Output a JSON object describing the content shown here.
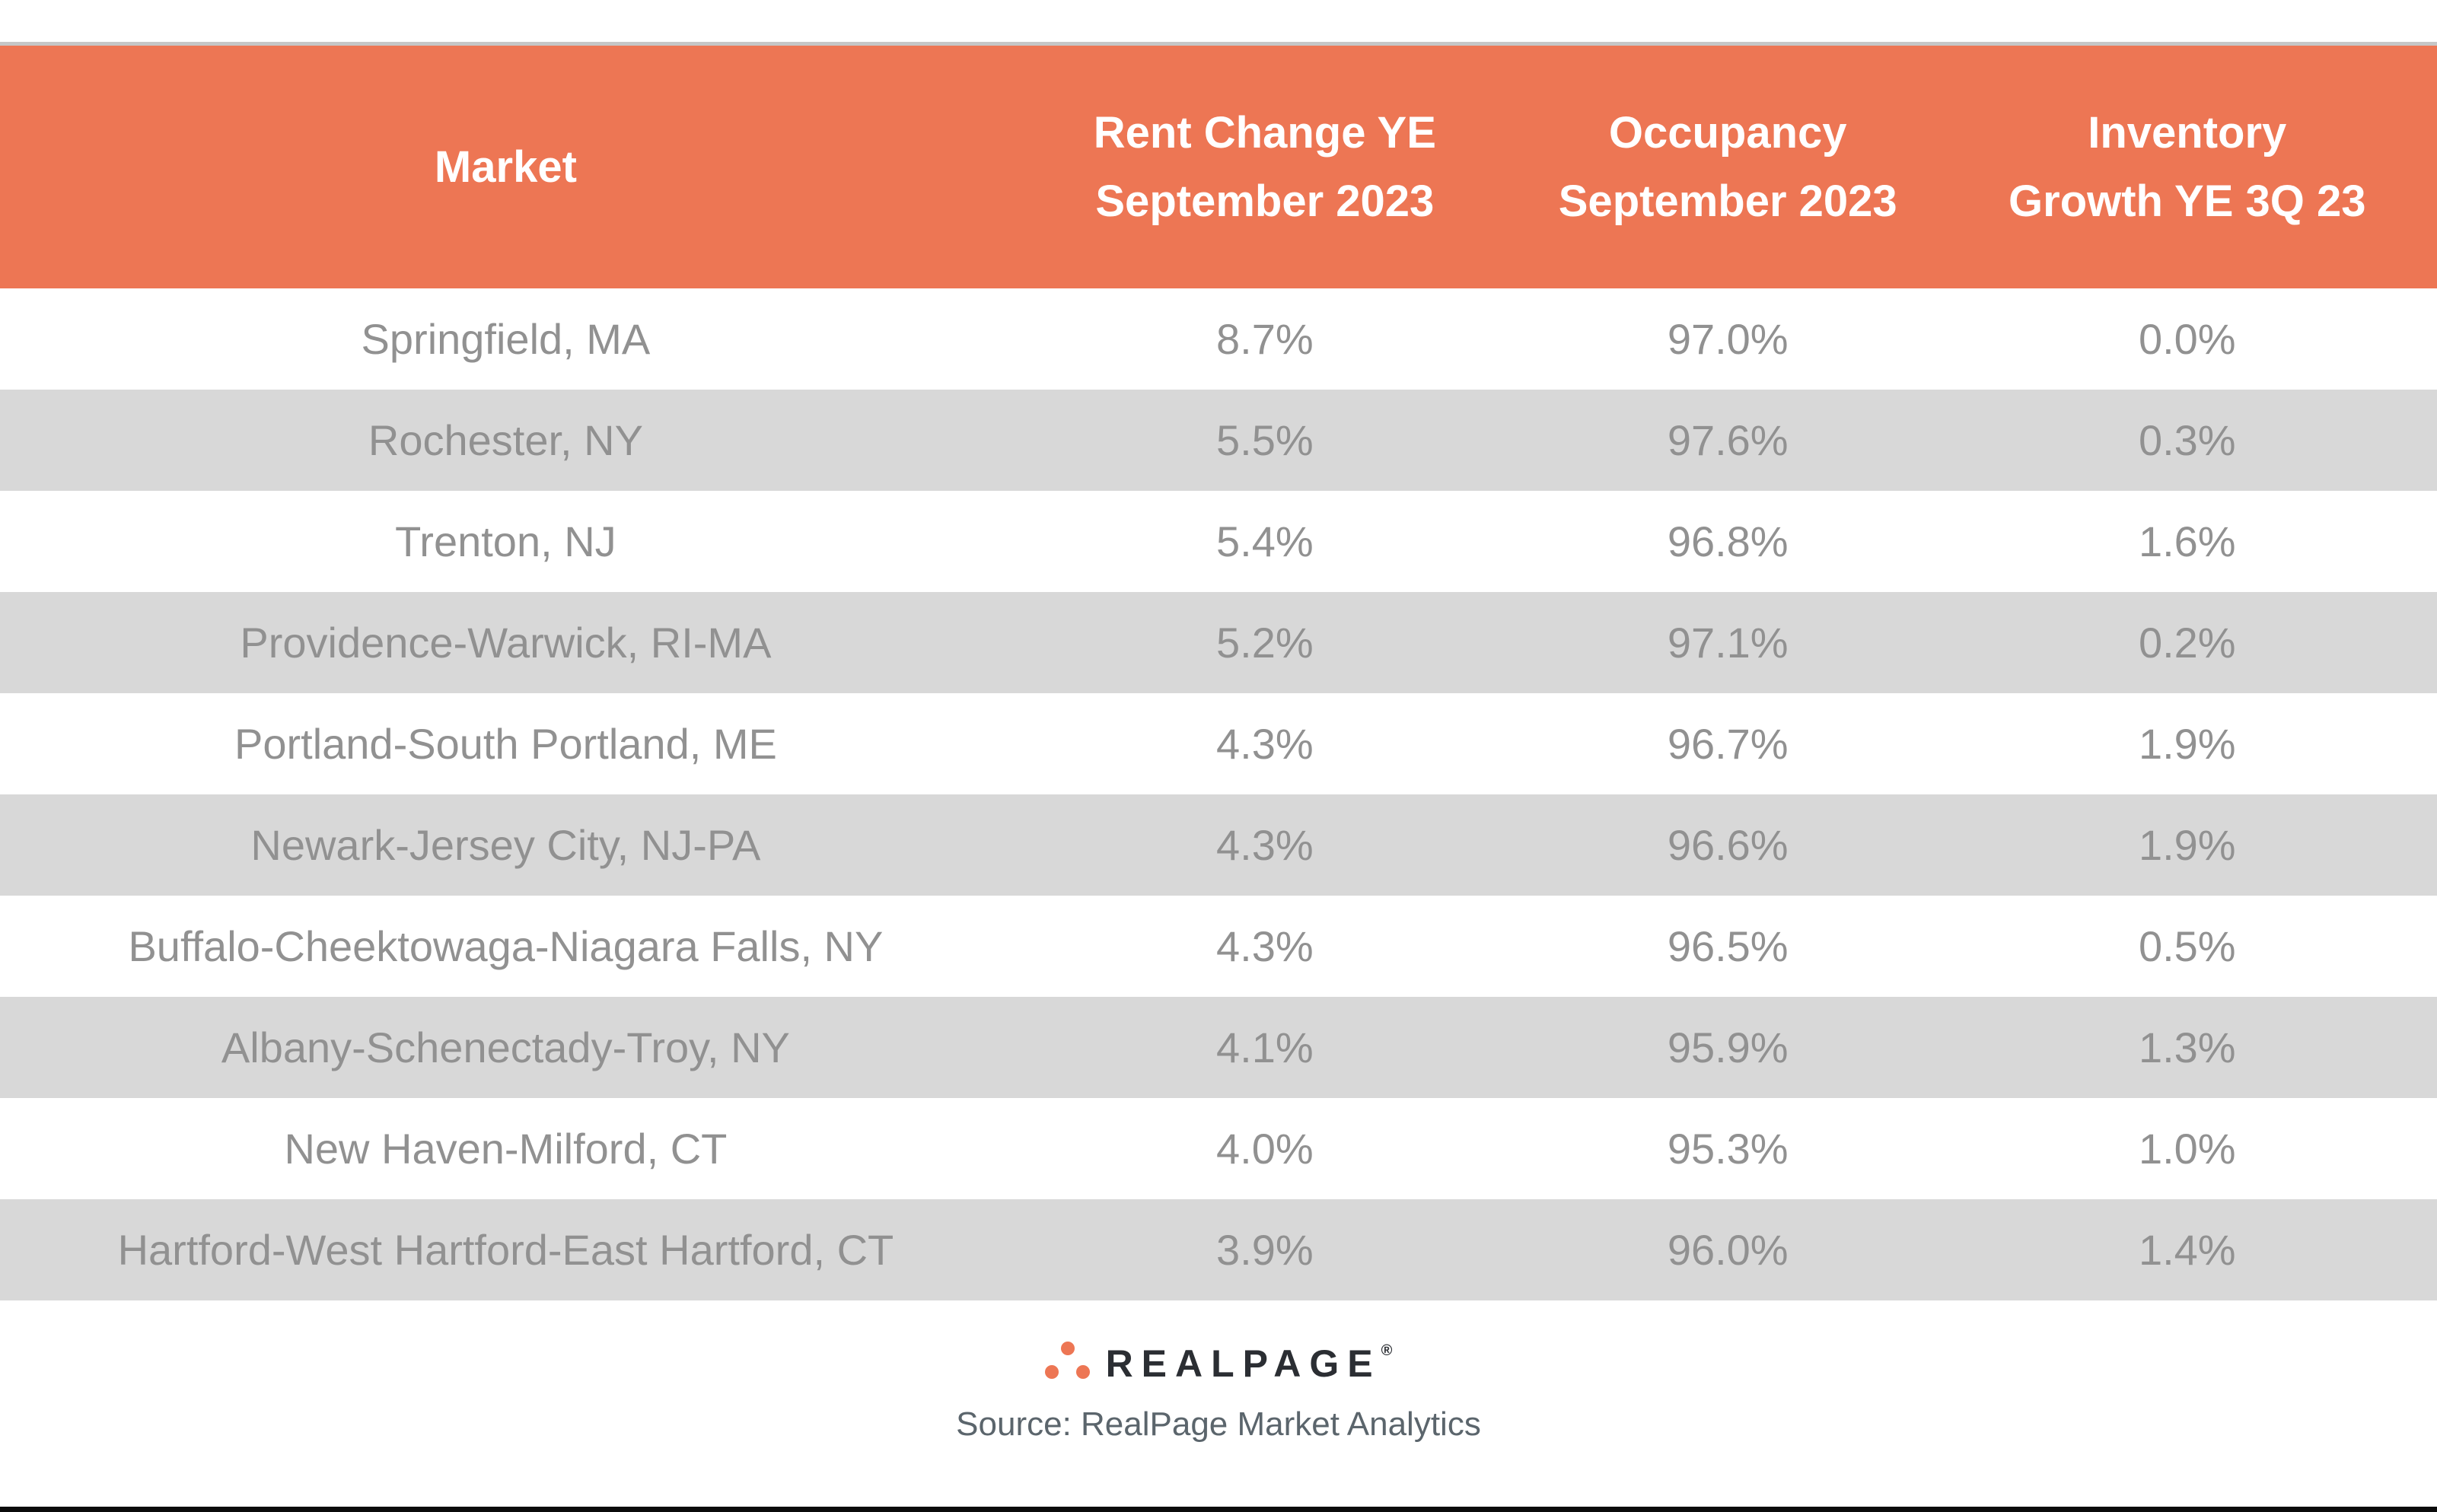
{
  "table": {
    "header": {
      "market": "Market",
      "col2_line1": "Rent Change YE",
      "col2_line2": "September 2023",
      "col3_line1": "Occupancy",
      "col3_line2": "September 2023",
      "col4_line1": "Inventory",
      "col4_line2": "Growth YE 3Q 23"
    },
    "rows": [
      {
        "market": "Springfield, MA",
        "rent_change": "8.7%",
        "occupancy": "97.0%",
        "inventory_growth": "0.0%"
      },
      {
        "market": "Rochester, NY",
        "rent_change": "5.5%",
        "occupancy": "97.6%",
        "inventory_growth": "0.3%"
      },
      {
        "market": "Trenton, NJ",
        "rent_change": "5.4%",
        "occupancy": "96.8%",
        "inventory_growth": "1.6%"
      },
      {
        "market": "Providence-Warwick, RI-MA",
        "rent_change": "5.2%",
        "occupancy": "97.1%",
        "inventory_growth": "0.2%"
      },
      {
        "market": "Portland-South Portland, ME",
        "rent_change": "4.3%",
        "occupancy": "96.7%",
        "inventory_growth": "1.9%"
      },
      {
        "market": "Newark-Jersey City, NJ-PA",
        "rent_change": "4.3%",
        "occupancy": "96.6%",
        "inventory_growth": "1.9%"
      },
      {
        "market": "Buffalo-Cheektowaga-Niagara Falls, NY",
        "rent_change": "4.3%",
        "occupancy": "96.5%",
        "inventory_growth": "0.5%"
      },
      {
        "market": "Albany-Schenectady-Troy, NY",
        "rent_change": "4.1%",
        "occupancy": "95.9%",
        "inventory_growth": "1.3%"
      },
      {
        "market": "New Haven-Milford, CT",
        "rent_change": "4.0%",
        "occupancy": "95.3%",
        "inventory_growth": "1.0%"
      },
      {
        "market": "Hartford-West Hartford-East Hartford, CT",
        "rent_change": "3.9%",
        "occupancy": "96.0%",
        "inventory_growth": "1.4%"
      }
    ]
  },
  "footer": {
    "brand": "REALPAGE",
    "registered_mark": "®",
    "source": "Source: RealPage Market Analytics"
  },
  "colors": {
    "header_bg": "#ED7654",
    "header_text": "#FFFFFF",
    "row_alt_bg": "#D8D8D8",
    "row_text": "#919191",
    "hairline": "#C6C6C6",
    "brand_text": "#2B2E33",
    "source_text": "#5B656C",
    "logo_dot": "#ED7654",
    "bottom_bar": "#0B0B0B"
  },
  "chart_data": {
    "type": "table",
    "title": "",
    "columns": [
      "Market",
      "Rent Change YE September 2023",
      "Occupancy September 2023",
      "Inventory Growth YE 3Q 23"
    ],
    "rows": [
      [
        "Springfield, MA",
        8.7,
        97.0,
        0.0
      ],
      [
        "Rochester, NY",
        5.5,
        97.6,
        0.3
      ],
      [
        "Trenton, NJ",
        5.4,
        96.8,
        1.6
      ],
      [
        "Providence-Warwick, RI-MA",
        5.2,
        97.1,
        0.2
      ],
      [
        "Portland-South Portland, ME",
        4.3,
        96.7,
        1.9
      ],
      [
        "Newark-Jersey City, NJ-PA",
        4.3,
        96.6,
        1.9
      ],
      [
        "Buffalo-Cheektowaga-Niagara Falls, NY",
        4.3,
        96.5,
        0.5
      ],
      [
        "Albany-Schenectady-Troy, NY",
        4.1,
        95.9,
        1.3
      ],
      [
        "New Haven-Milford, CT",
        4.0,
        95.3,
        1.0
      ],
      [
        "Hartford-West Hartford-East Hartford, CT",
        3.9,
        96.0,
        1.4
      ]
    ],
    "units": "percent",
    "source": "Source: RealPage Market Analytics"
  }
}
